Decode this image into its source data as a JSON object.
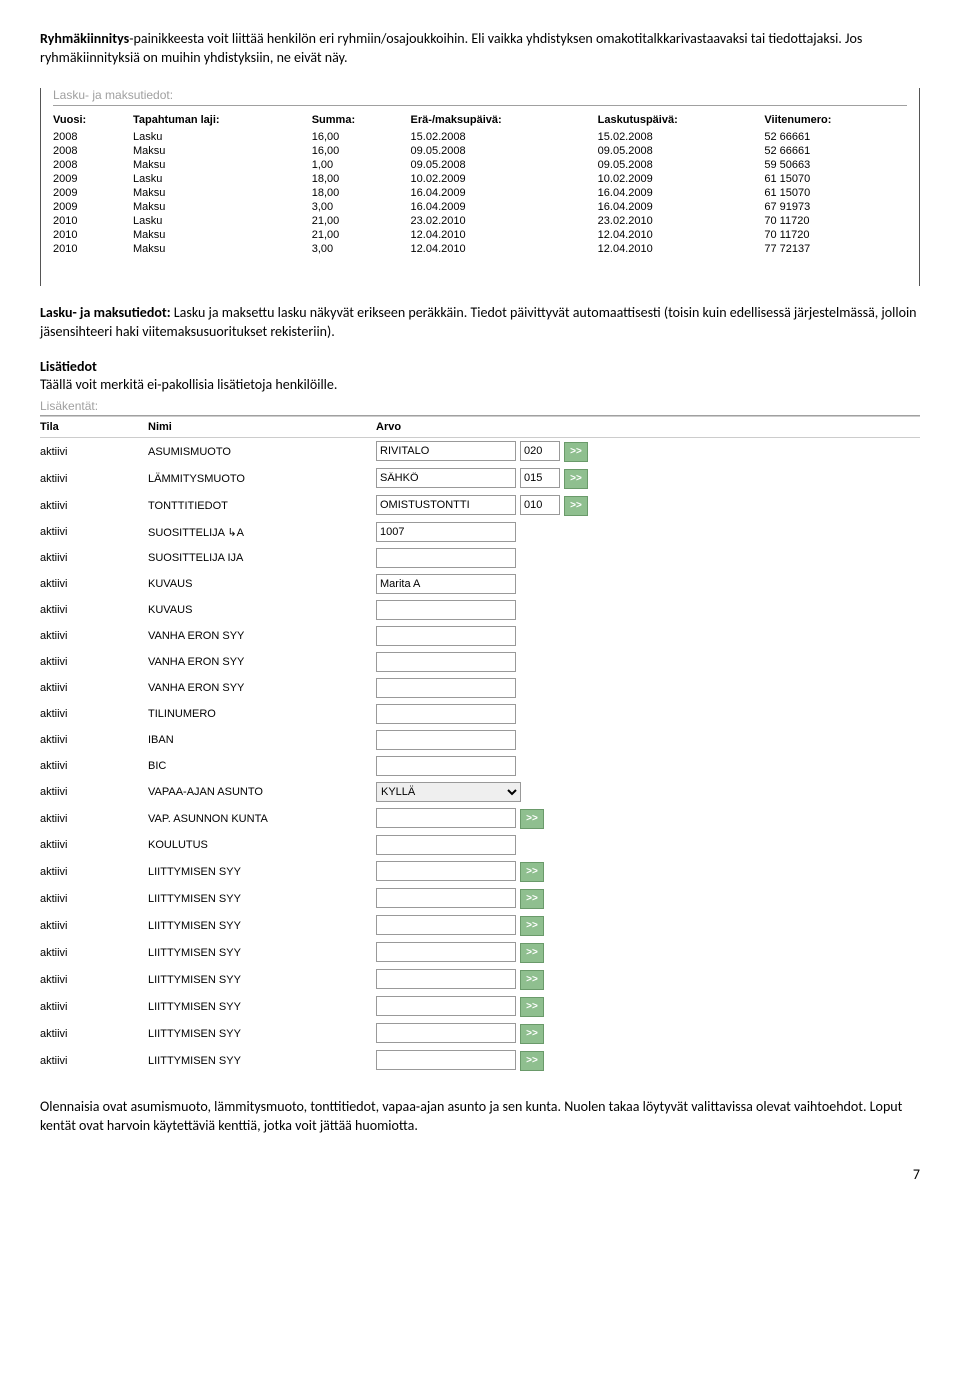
{
  "paragraphs": {
    "p1_bold": "Ryhmäkiinnitys",
    "p1_rest": "-painikkeesta voit liittää henkilön eri ryhmiin/osajoukkoihin. Eli vaikka yhdistyksen omakotitalkkarivastaavaksi tai tiedottajaksi. Jos ryhmäkiinnityksiä on muihin yhdistyksiin, ne eivät näy.",
    "lasku_heading": "Lasku- ja maksutiedot:",
    "p2_bold": "Lasku- ja maksutiedot:",
    "p2_rest": " Lasku ja maksettu lasku näkyvät erikseen peräkkäin. Tiedot päivittyvät automaattisesti (toisin kuin edellisessä järjestelmässä, jolloin jäsensihteeri haki viitemaksusuoritukset rekisteriin).",
    "p3_bold": "Lisätiedot",
    "p3_rest": "Täällä voit merkitä ei-pakollisia lisätietoja henkilöille.",
    "lisakentat_heading": "Lisäkentät:",
    "p4": "Olennaisia ovat asumismuoto, lämmitysmuoto, tonttitiedot, vapaa-ajan asunto ja sen kunta. Nuolen takaa löytyvät valittavissa olevat vaihtoehdot. Loput kentät ovat harvoin käytettäviä kenttiä, jotka voit jättää huomiotta.",
    "pagenum": "7"
  },
  "lasku_table": {
    "headers": [
      "Vuosi:",
      "Tapahtuman laji:",
      "Summa:",
      "Erä-/maksupäivä:",
      "Laskutuspäivä:",
      "Viitenumero:"
    ],
    "rows": [
      [
        "2008",
        "Lasku",
        "16,00",
        "15.02.2008",
        "15.02.2008",
        "52 66661"
      ],
      [
        "2008",
        "Maksu",
        "16,00",
        "09.05.2008",
        "09.05.2008",
        "52 66661"
      ],
      [
        "2008",
        "Maksu",
        "1,00",
        "09.05.2008",
        "09.05.2008",
        "59 50663"
      ],
      [
        "2009",
        "Lasku",
        "18,00",
        "10.02.2009",
        "10.02.2009",
        "61 15070"
      ],
      [
        "2009",
        "Maksu",
        "18,00",
        "16.04.2009",
        "16.04.2009",
        "61 15070"
      ],
      [
        "2009",
        "Maksu",
        "3,00",
        "16.04.2009",
        "16.04.2009",
        "67 91973"
      ],
      [
        "2010",
        "Lasku",
        "21,00",
        "23.02.2010",
        "23.02.2010",
        "70 11720"
      ],
      [
        "2010",
        "Maksu",
        "21,00",
        "12.04.2010",
        "12.04.2010",
        "70 11720"
      ],
      [
        "2010",
        "Maksu",
        "3,00",
        "12.04.2010",
        "12.04.2010",
        "77 72137"
      ]
    ]
  },
  "lisa_table": {
    "headers": [
      "Tila",
      "Nimi",
      "Arvo"
    ],
    "tila": "aktiivi",
    "arrow_label": ">>",
    "rows": [
      {
        "nimi": "ASUMISMUOTO",
        "value": "RIVITALO",
        "code": "020",
        "arrow": true,
        "type": "text"
      },
      {
        "nimi": "LÄMMITYSMUOTO",
        "value": "SÄHKÖ",
        "code": "015",
        "arrow": true,
        "type": "text"
      },
      {
        "nimi": "TONTTITIEDOT",
        "value": "OMISTUSTONTTI",
        "code": "010",
        "arrow": true,
        "type": "text"
      },
      {
        "nimi": "SUOSITTELIJA ↳A",
        "value": "1007",
        "code": "",
        "arrow": false,
        "type": "text"
      },
      {
        "nimi": "SUOSITTELIJA IJA",
        "value": "",
        "code": "",
        "arrow": false,
        "type": "text"
      },
      {
        "nimi": "KUVAUS",
        "value": "Marita A",
        "code": "",
        "arrow": false,
        "type": "text"
      },
      {
        "nimi": "KUVAUS",
        "value": "",
        "code": "",
        "arrow": false,
        "type": "text"
      },
      {
        "nimi": "VANHA ERON SYY",
        "value": "",
        "code": "",
        "arrow": false,
        "type": "text"
      },
      {
        "nimi": "VANHA ERON SYY",
        "value": "",
        "code": "",
        "arrow": false,
        "type": "text"
      },
      {
        "nimi": "VANHA ERON SYY",
        "value": "",
        "code": "",
        "arrow": false,
        "type": "text"
      },
      {
        "nimi": "TILINUMERO",
        "value": "",
        "code": "",
        "arrow": false,
        "type": "text"
      },
      {
        "nimi": "IBAN",
        "value": "",
        "code": "",
        "arrow": false,
        "type": "text"
      },
      {
        "nimi": "BIC",
        "value": "",
        "code": "",
        "arrow": false,
        "type": "text"
      },
      {
        "nimi": "VAPAA-AJAN ASUNTO",
        "value": "KYLLÄ",
        "code": "",
        "arrow": false,
        "type": "select"
      },
      {
        "nimi": "VAP. ASUNNON KUNTA",
        "value": "",
        "code": "",
        "arrow": true,
        "type": "text"
      },
      {
        "nimi": "KOULUTUS",
        "value": "",
        "code": "",
        "arrow": false,
        "type": "text"
      },
      {
        "nimi": "LIITTYMISEN SYY",
        "value": "",
        "code": "",
        "arrow": true,
        "type": "text"
      },
      {
        "nimi": "LIITTYMISEN SYY",
        "value": "",
        "code": "",
        "arrow": true,
        "type": "text"
      },
      {
        "nimi": "LIITTYMISEN SYY",
        "value": "",
        "code": "",
        "arrow": true,
        "type": "text"
      },
      {
        "nimi": "LIITTYMISEN SYY",
        "value": "",
        "code": "",
        "arrow": true,
        "type": "text"
      },
      {
        "nimi": "LIITTYMISEN SYY",
        "value": "",
        "code": "",
        "arrow": true,
        "type": "text"
      },
      {
        "nimi": "LIITTYMISEN SYY",
        "value": "",
        "code": "",
        "arrow": true,
        "type": "text"
      },
      {
        "nimi": "LIITTYMISEN SYY",
        "value": "",
        "code": "",
        "arrow": true,
        "type": "text"
      },
      {
        "nimi": "LIITTYMISEN SYY",
        "value": "",
        "code": "",
        "arrow": true,
        "type": "text"
      }
    ]
  }
}
